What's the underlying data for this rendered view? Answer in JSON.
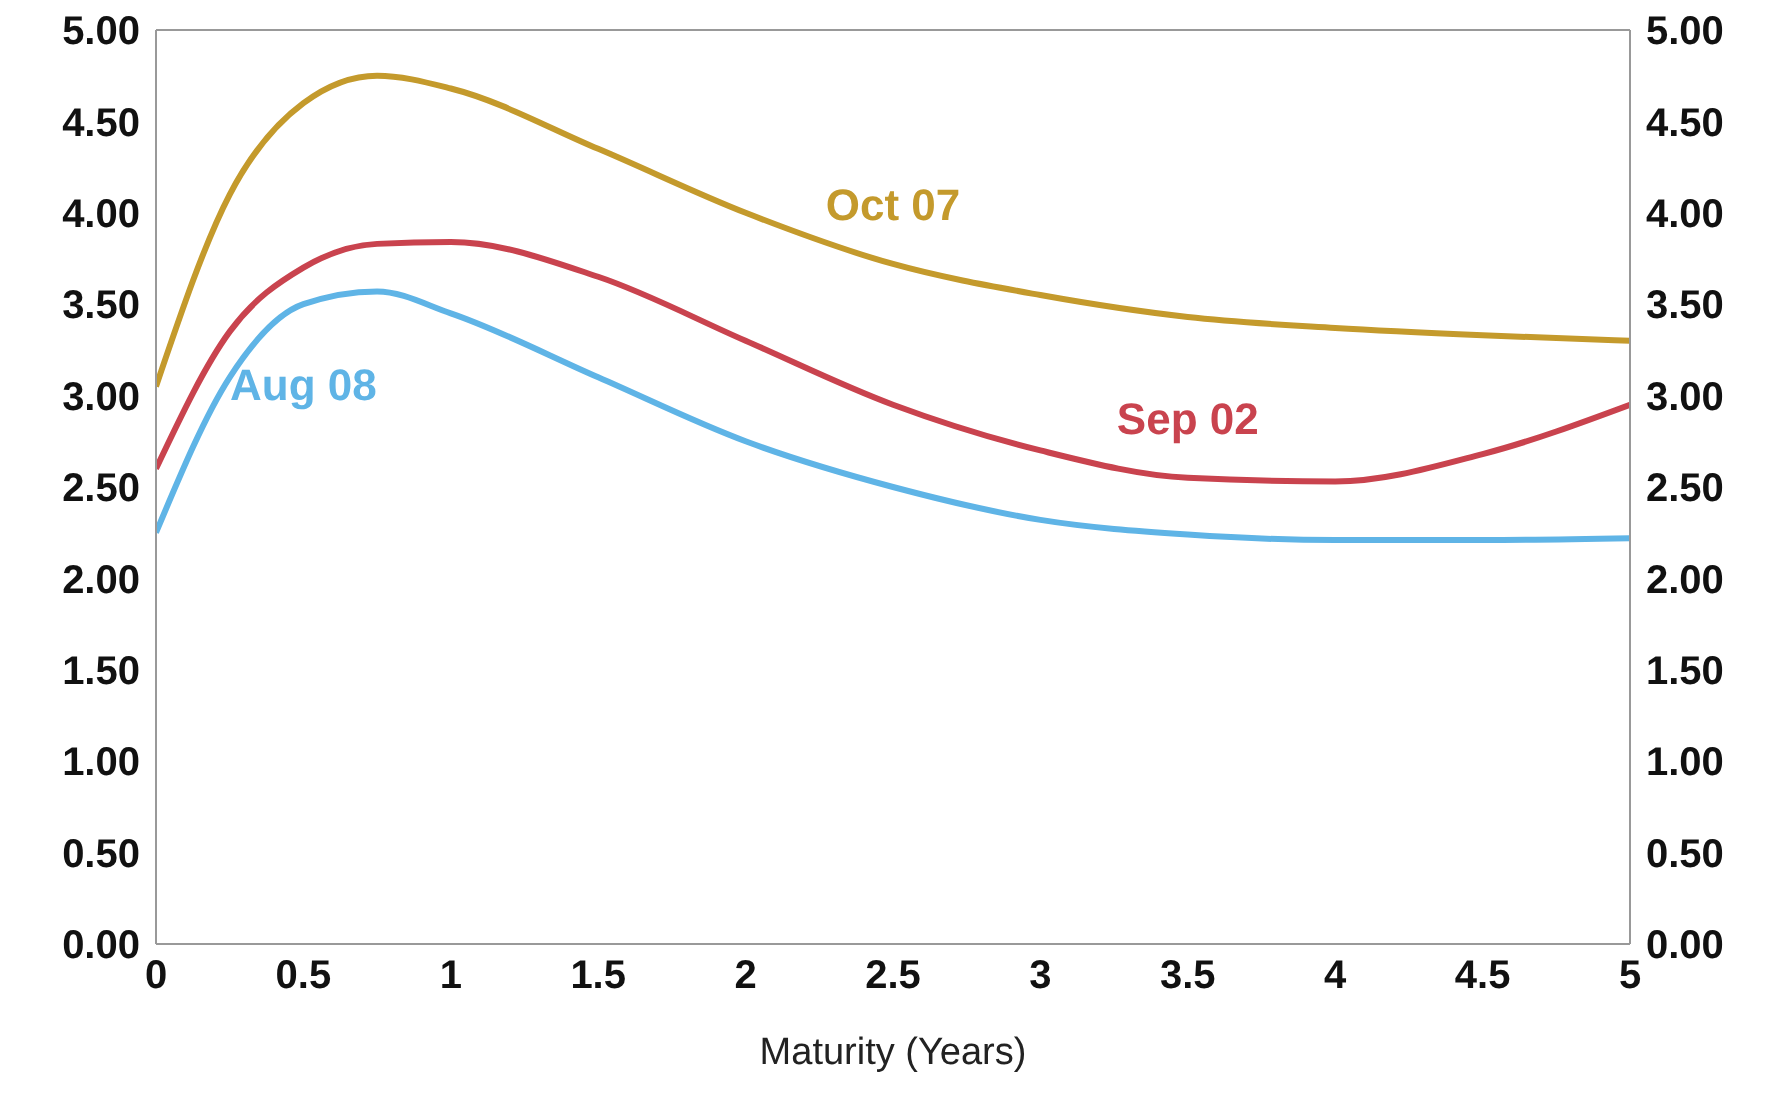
{
  "chart_data": {
    "type": "line",
    "xlabel": "Maturity (Years)",
    "x": [
      0,
      0.25,
      0.5,
      0.75,
      1,
      1.5,
      2,
      2.5,
      3,
      3.5,
      4,
      4.5,
      5
    ],
    "series": [
      {
        "name": "Oct 07",
        "color": "#c49a2c",
        "values": [
          3.05,
          4.1,
          4.6,
          4.75,
          4.68,
          4.35,
          4.0,
          3.72,
          3.55,
          3.43,
          3.37,
          3.33,
          3.3
        ]
      },
      {
        "name": "Sep 02",
        "color": "#c9434e",
        "values": [
          2.6,
          3.35,
          3.7,
          3.83,
          3.84,
          3.65,
          3.3,
          2.95,
          2.7,
          2.55,
          2.53,
          2.68,
          2.95
        ]
      },
      {
        "name": "Aug 08",
        "color": "#5fb4e6",
        "values": [
          2.25,
          3.1,
          3.5,
          3.57,
          3.45,
          3.1,
          2.75,
          2.5,
          2.32,
          2.24,
          2.21,
          2.21,
          2.22
        ]
      }
    ],
    "xlim": [
      0,
      5
    ],
    "xticks": [
      0,
      0.5,
      1,
      1.5,
      2,
      2.5,
      3,
      3.5,
      4,
      4.5,
      5
    ],
    "ylim": [
      0,
      5
    ],
    "yticks": [
      {
        "value": 0,
        "label": "0.00"
      },
      {
        "value": 0.5,
        "label": "0.50"
      },
      {
        "value": 1,
        "label": "1.00"
      },
      {
        "value": 1.5,
        "label": "1.50"
      },
      {
        "value": 2,
        "label": "2.00"
      },
      {
        "value": 2.5,
        "label": "2.50"
      },
      {
        "value": 3,
        "label": "3.00"
      },
      {
        "value": 3.5,
        "label": "3.50"
      },
      {
        "value": 4,
        "label": "4.00"
      },
      {
        "value": 4.5,
        "label": "4.50"
      },
      {
        "value": 5,
        "label": "5.00"
      }
    ],
    "y2lim": [
      0,
      5
    ],
    "y2ticks": [
      {
        "value": 0,
        "label": "0.00"
      },
      {
        "value": 0.5,
        "label": "0.50"
      },
      {
        "value": 1,
        "label": "1.00"
      },
      {
        "value": 1.5,
        "label": "1.50"
      },
      {
        "value": 2,
        "label": "2.00"
      },
      {
        "value": 2.5,
        "label": "2.50"
      },
      {
        "value": 3,
        "label": "3.00"
      },
      {
        "value": 3.5,
        "label": "3.50"
      },
      {
        "value": 4,
        "label": "4.00"
      },
      {
        "value": 4.5,
        "label": "4.50"
      },
      {
        "value": 5,
        "label": "5.00"
      }
    ],
    "grid": false,
    "legend": false,
    "marker": "none",
    "line_style": "solid"
  }
}
